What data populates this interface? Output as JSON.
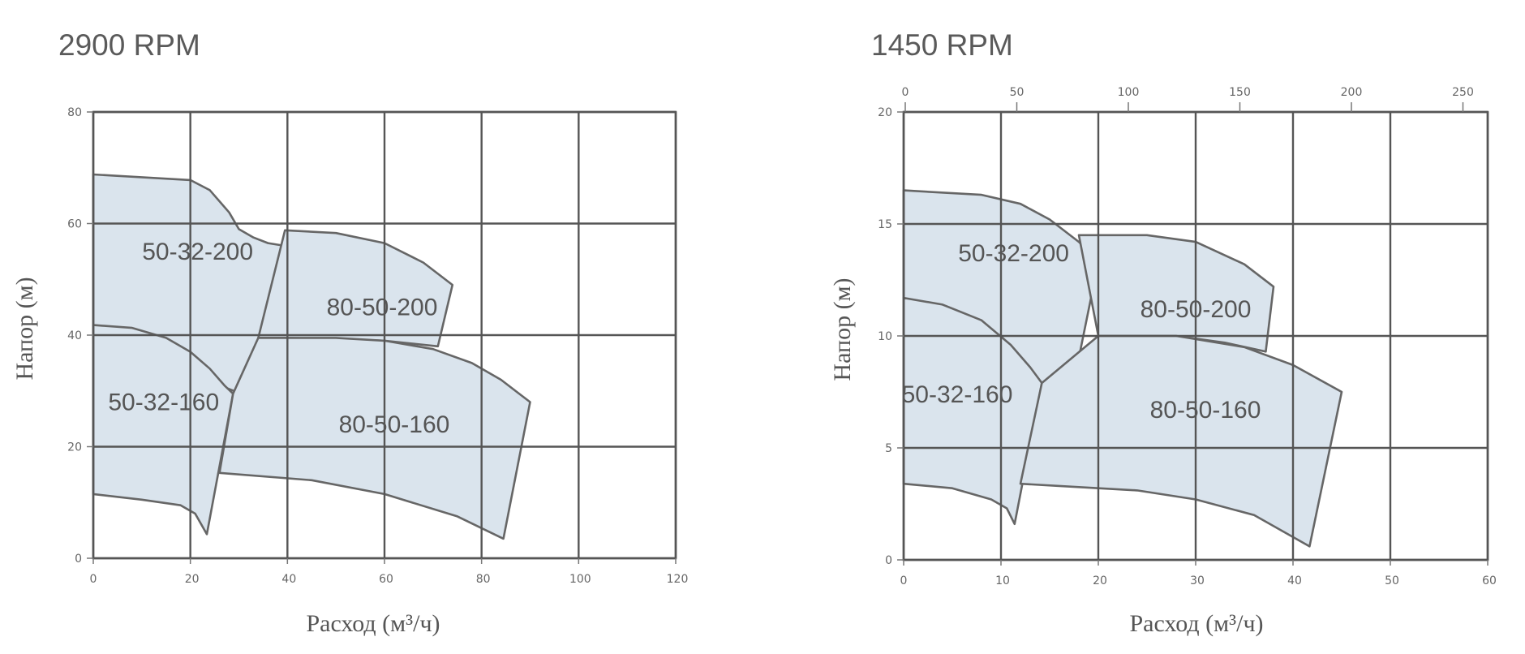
{
  "chart_data": [
    {
      "type": "area",
      "title": "2900 RPM",
      "xlabel": "Расход (м³/ч)",
      "ylabel": "Напор (м)",
      "xlim": [
        0,
        120
      ],
      "ylim": [
        0,
        80
      ],
      "x_ticks": [
        0,
        20,
        40,
        60,
        80,
        100,
        120
      ],
      "y_ticks": [
        0,
        20,
        40,
        60,
        80
      ],
      "grid": true,
      "regions": [
        {
          "name": "50-32-200",
          "label": "50-32-200",
          "label_at": [
            21.5,
            55
          ],
          "outline": [
            [
              0,
              68.8
            ],
            [
              20,
              67.8
            ],
            [
              24,
              66
            ],
            [
              28,
              62
            ],
            [
              30,
              59
            ],
            [
              33,
              57.5
            ],
            [
              36,
              56.5
            ],
            [
              39.5,
              56
            ],
            [
              31.7,
              22.3
            ],
            [
              29,
              30
            ],
            [
              26,
              31
            ],
            [
              22,
              33
            ],
            [
              16,
              35
            ],
            [
              8,
              37.5
            ],
            [
              0,
              38.5
            ]
          ]
        },
        {
          "name": "80-50-200",
          "label": "80-50-200",
          "label_at": [
            59.5,
            45
          ],
          "outline": [
            [
              39.5,
              58.8
            ],
            [
              50,
              58.3
            ],
            [
              60,
              56.5
            ],
            [
              68,
              53
            ],
            [
              74,
              49
            ],
            [
              71,
              38
            ],
            [
              60,
              39
            ],
            [
              50,
              39.3
            ],
            [
              39.5,
              39.5
            ],
            [
              34,
              39.5
            ]
          ]
        },
        {
          "name": "50-32-160",
          "label": "50-32-160",
          "label_at": [
            14.5,
            28
          ],
          "outline": [
            [
              0,
              41.8
            ],
            [
              8,
              41.3
            ],
            [
              15,
              39.5
            ],
            [
              20,
              37
            ],
            [
              24,
              34
            ],
            [
              27,
              31
            ],
            [
              28.8,
              29.5
            ],
            [
              23.4,
              4.3
            ],
            [
              21,
              8
            ],
            [
              18,
              9.5
            ],
            [
              10,
              10.5
            ],
            [
              0,
              11.5
            ]
          ]
        },
        {
          "name": "80-50-160",
          "label": "80-50-160",
          "label_at": [
            62,
            24
          ],
          "outline": [
            [
              34,
              39.5
            ],
            [
              50,
              39.5
            ],
            [
              60,
              39
            ],
            [
              70,
              37.5
            ],
            [
              78,
              35
            ],
            [
              84,
              32
            ],
            [
              90,
              28
            ],
            [
              84.5,
              3.5
            ],
            [
              75,
              7.5
            ],
            [
              60,
              11.5
            ],
            [
              45,
              14
            ],
            [
              26,
              15.3
            ],
            [
              28.8,
              29.5
            ],
            [
              34,
              39.5
            ]
          ]
        }
      ]
    },
    {
      "type": "area",
      "title": "1450 RPM",
      "xlabel": "Расход (м³/ч)",
      "ylabel": "Напор (м)",
      "xlim": [
        0,
        60
      ],
      "ylim": [
        0,
        20
      ],
      "x_ticks": [
        0,
        10,
        20,
        30,
        40,
        50,
        60
      ],
      "y_ticks": [
        0,
        5,
        10,
        15,
        20
      ],
      "x2_ticks": [
        0,
        50,
        100,
        150,
        200,
        250
      ],
      "grid": true,
      "regions": [
        {
          "name": "50-32-200",
          "label": "50-32-200",
          "label_at": [
            11.3,
            13.7
          ],
          "outline": [
            [
              0,
              16.5
            ],
            [
              8,
              16.3
            ],
            [
              12,
              15.9
            ],
            [
              15,
              15.2
            ],
            [
              18,
              14.2
            ],
            [
              20,
              13.3
            ],
            [
              16.4,
              5.6
            ],
            [
              15,
              7
            ],
            [
              13,
              8.5
            ],
            [
              10,
              10
            ],
            [
              7,
              10.7
            ],
            [
              0,
              11.7
            ]
          ]
        },
        {
          "name": "80-50-200",
          "label": "80-50-200",
          "label_at": [
            30,
            11.2
          ],
          "outline": [
            [
              18,
              14.5
            ],
            [
              25,
              14.5
            ],
            [
              30,
              14.2
            ],
            [
              35,
              13.2
            ],
            [
              38,
              12.2
            ],
            [
              37.2,
              9.3
            ],
            [
              33,
              9.7
            ],
            [
              28,
              10
            ],
            [
              20,
              10
            ]
          ]
        },
        {
          "name": "50-32-160",
          "label": "50-32-160",
          "label_at": [
            5.5,
            7.4
          ],
          "outline": [
            [
              0,
              11.7
            ],
            [
              4,
              11.4
            ],
            [
              8,
              10.7
            ],
            [
              11,
              9.6
            ],
            [
              13,
              8.6
            ],
            [
              14.2,
              7.9
            ],
            [
              11.4,
              1.6
            ],
            [
              10.6,
              2.3
            ],
            [
              9,
              2.7
            ],
            [
              5,
              3.2
            ],
            [
              0,
              3.4
            ]
          ]
        },
        {
          "name": "80-50-160",
          "label": "80-50-160",
          "label_at": [
            31,
            6.7
          ],
          "outline": [
            [
              20,
              10
            ],
            [
              28,
              10
            ],
            [
              35,
              9.5
            ],
            [
              40,
              8.7
            ],
            [
              45,
              7.5
            ],
            [
              41.7,
              0.6
            ],
            [
              36,
              2
            ],
            [
              30,
              2.7
            ],
            [
              24,
              3.1
            ],
            [
              16,
              3.3
            ],
            [
              12,
              3.4
            ],
            [
              14.2,
              7.9
            ],
            [
              20,
              10
            ]
          ]
        }
      ]
    }
  ]
}
